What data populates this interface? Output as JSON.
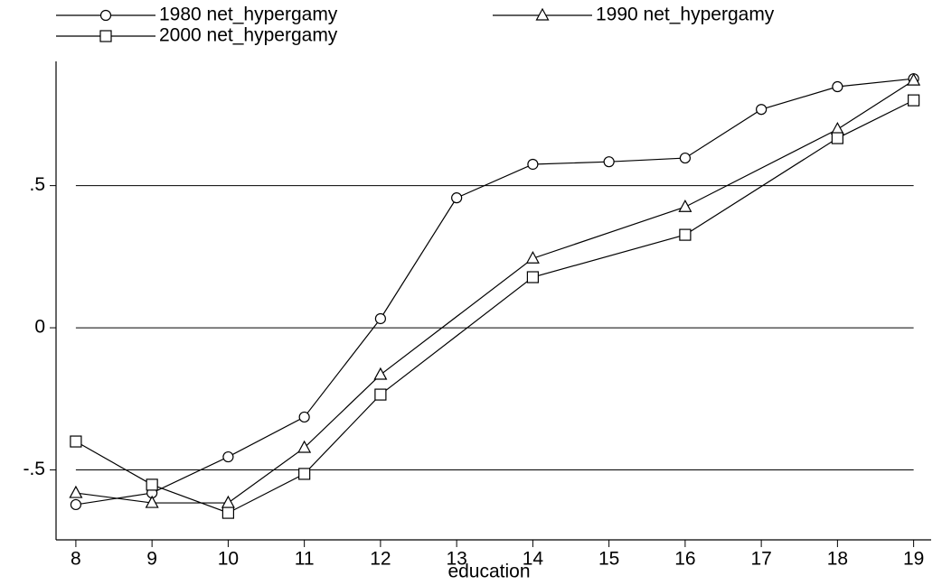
{
  "chart_data": {
    "type": "line",
    "xlabel": "education",
    "xlim": [
      7.74,
      19.23
    ],
    "xticks": [
      8,
      9,
      10,
      11,
      12,
      13,
      14,
      15,
      16,
      17,
      18,
      19
    ],
    "ylim": [
      -0.746,
      0.937
    ],
    "yticks": [
      {
        "value": -0.5,
        "label": "-.5"
      },
      0,
      {
        "value": 0.5,
        "label": ".5"
      }
    ],
    "grid": true,
    "legend": "top",
    "series": [
      {
        "name": "1980 net_hypergamy",
        "color": "#000000",
        "marker": "circle",
        "x": [
          8,
          9,
          10,
          11,
          12,
          13,
          14,
          15,
          16,
          17,
          18,
          19
        ],
        "values": [
          -0.622,
          -0.581,
          -0.454,
          -0.314,
          0.032,
          0.457,
          0.575,
          0.584,
          0.597,
          0.768,
          0.848,
          0.876
        ]
      },
      {
        "name": "1990 net_hypergamy",
        "color": "#000000",
        "marker": "triangle",
        "x": [
          8,
          9,
          10,
          11,
          12,
          14,
          16,
          18,
          19
        ],
        "values": [
          -0.581,
          -0.616,
          -0.616,
          -0.422,
          -0.165,
          0.244,
          0.425,
          0.698,
          0.87
        ]
      },
      {
        "name": "2000 net_hypergamy",
        "color": "#000000",
        "marker": "square",
        "x": [
          8,
          9,
          10,
          11,
          12,
          14,
          16,
          18,
          19
        ],
        "values": [
          -0.4,
          -0.552,
          -0.651,
          -0.514,
          -0.235,
          0.178,
          0.327,
          0.667,
          0.8
        ]
      }
    ]
  }
}
